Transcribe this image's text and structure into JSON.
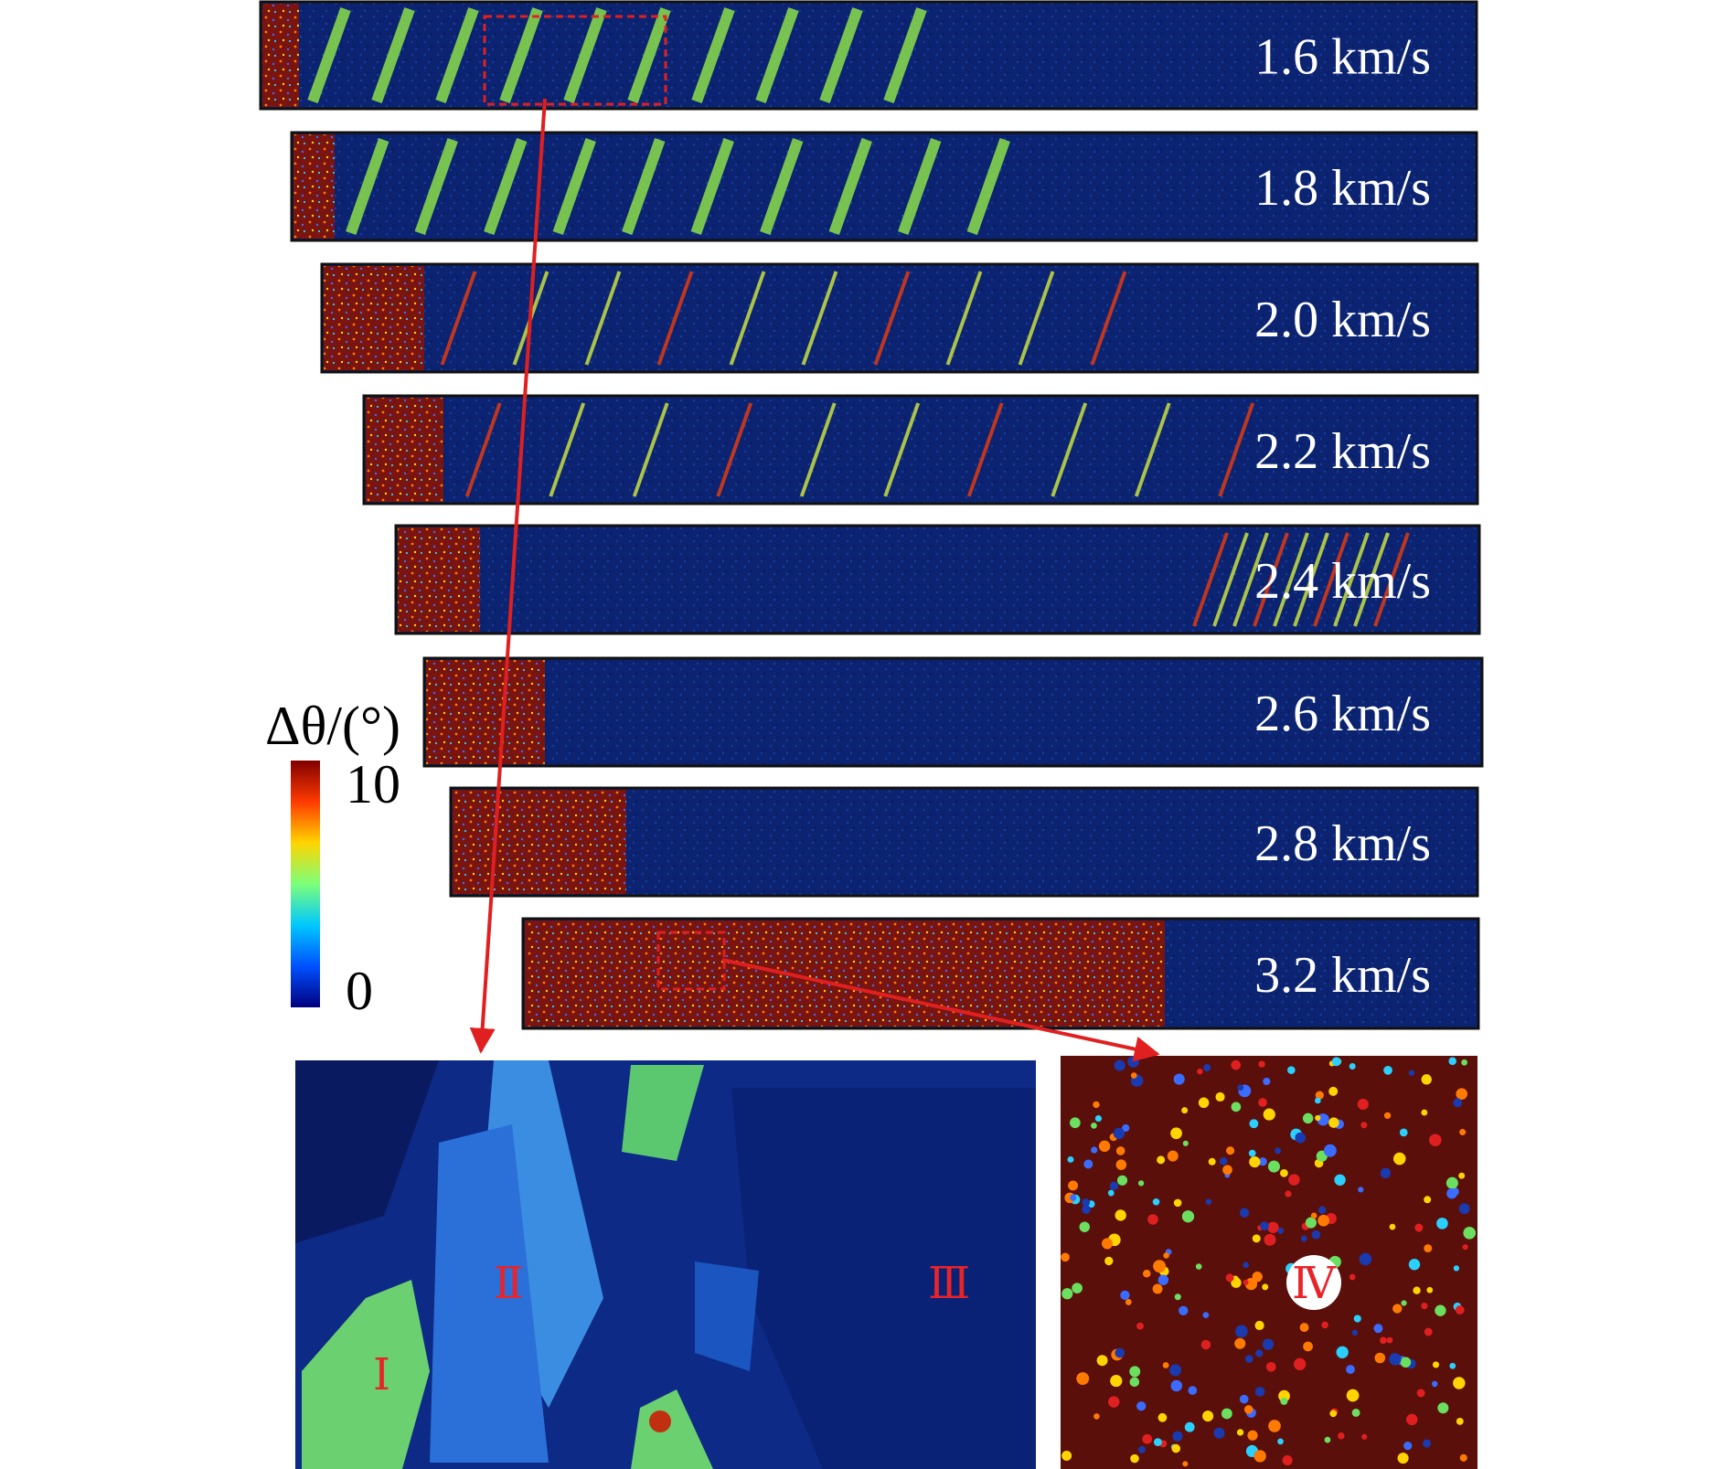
{
  "colors": {
    "matrix": "#0b2370",
    "matrix_dark": "#07164f",
    "shock": "#7a1410",
    "highlight": "#e02020",
    "arrow": "#e02020",
    "frame": "#111111"
  },
  "panels": [
    {
      "velocity_label": "1.6 km/s"
    },
    {
      "velocity_label": "1.8 km/s"
    },
    {
      "velocity_label": "2.0 km/s"
    },
    {
      "velocity_label": "2.2 km/s"
    },
    {
      "velocity_label": "2.4 km/s"
    },
    {
      "velocity_label": "2.6 km/s"
    },
    {
      "velocity_label": "2.8 km/s"
    },
    {
      "velocity_label": "3.2 km/s"
    }
  ],
  "colorbar": {
    "title": "Δθ/(°)",
    "max_label": "10",
    "min_label": "0",
    "colors": [
      "#00007f",
      "#0050ff",
      "#00c8ff",
      "#7cff7a",
      "#ffd400",
      "#ff3a00",
      "#800000"
    ]
  },
  "zoom_left": {
    "region_labels": [
      "Ⅰ",
      "Ⅱ",
      "Ⅲ"
    ]
  },
  "zoom_right": {
    "region_label": "Ⅳ"
  }
}
